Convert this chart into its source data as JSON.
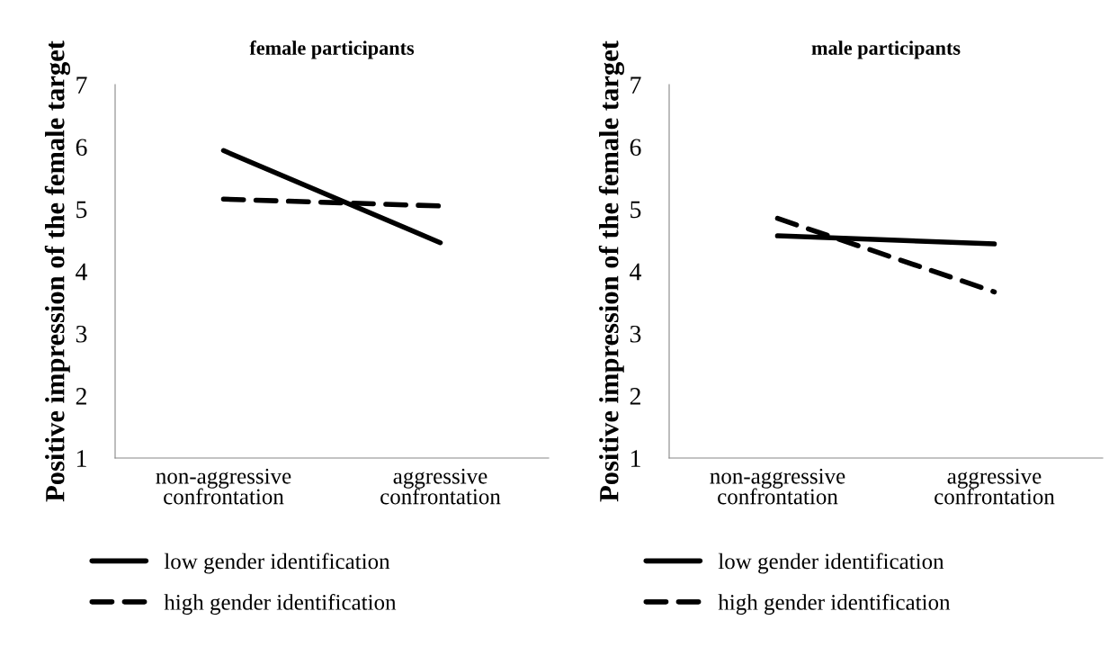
{
  "chart_data": [
    {
      "type": "line",
      "title": "female participants",
      "ylabel": "Positive impression of the female target",
      "categories": [
        "non-aggressive\nconfrontation",
        "aggressive\nconfrontation"
      ],
      "ylim": [
        1,
        7
      ],
      "yticks": [
        1,
        2,
        3,
        4,
        5,
        6,
        7
      ],
      "grid": false,
      "legend": "bottom",
      "marker": "none",
      "series": [
        {
          "name": "low gender identification",
          "color": "#000000",
          "line_style": "solid",
          "values": [
            5.94,
            4.46
          ]
        },
        {
          "name": "high gender identification",
          "color": "#000000",
          "line_style": "dashed",
          "values": [
            5.16,
            5.05
          ]
        }
      ]
    },
    {
      "type": "line",
      "title": "male participants",
      "ylabel": "Positive impression of the female target",
      "categories": [
        "non-aggressive\nconfrontation",
        "aggressive\nconfrontation"
      ],
      "ylim": [
        1,
        7
      ],
      "yticks": [
        1,
        2,
        3,
        4,
        5,
        6,
        7
      ],
      "grid": false,
      "legend": "bottom",
      "marker": "none",
      "series": [
        {
          "name": "low gender identification",
          "color": "#000000",
          "line_style": "solid",
          "values": [
            4.57,
            4.44
          ]
        },
        {
          "name": "high gender identification",
          "color": "#000000",
          "line_style": "dashed",
          "values": [
            4.85,
            3.67
          ]
        }
      ]
    }
  ]
}
